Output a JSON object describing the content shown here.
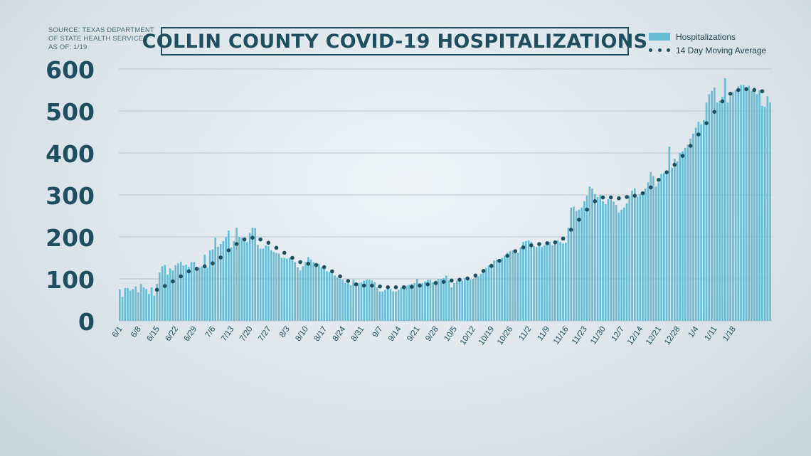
{
  "source_note": [
    "SOURCE: TEXAS DEPARTMENT",
    "OF STATE HEALTH SERVICES",
    "AS OF: 1/19"
  ],
  "colors": {
    "bar": "#68bdd4",
    "avg": "#1f4f5f",
    "axis_text": "#1f4f5f",
    "grid": "#b6c5cf"
  },
  "chart_data": {
    "type": "bar",
    "title": "COLLIN COUNTY COVID-19 HOSPITALIZATIONS",
    "ylim": [
      0,
      600
    ],
    "yticks": [
      0,
      100,
      200,
      300,
      400,
      500,
      600
    ],
    "grid": true,
    "legend_position": "top-right",
    "x_tick_labels": [
      "6/1",
      "6/8",
      "6/15",
      "6/22",
      "6/29",
      "7/6",
      "7/13",
      "7/20",
      "7/27",
      "8/3",
      "8/10",
      "8/17",
      "8/24",
      "8/31",
      "9/7",
      "9/14",
      "9/21",
      "9/28",
      "10/5",
      "10/12",
      "10/19",
      "10/26",
      "11/2",
      "11/9",
      "11/16",
      "11/23",
      "11/30",
      "12/7",
      "12/14",
      "12/21",
      "12/28",
      "1/4",
      "1/11",
      "1/18"
    ],
    "series": [
      {
        "name": "Hospitalizations",
        "type": "bar",
        "values": [
          75,
          57,
          78,
          78,
          72,
          76,
          82,
          68,
          88,
          80,
          76,
          64,
          80,
          60,
          88,
          115,
          130,
          133,
          110,
          125,
          120,
          133,
          137,
          141,
          132,
          134,
          128,
          140,
          140,
          123,
          127,
          130,
          158,
          127,
          168,
          170,
          198,
          176,
          183,
          190,
          200,
          215,
          175,
          190,
          222,
          200,
          198,
          193,
          188,
          210,
          222,
          221,
          181,
          172,
          172,
          180,
          178,
          168,
          164,
          162,
          160,
          150,
          150,
          148,
          150,
          144,
          140,
          128,
          120,
          130,
          140,
          152,
          146,
          140,
          134,
          136,
          128,
          127,
          118,
          116,
          114,
          108,
          104,
          100,
          98,
          90,
          90,
          85,
          98,
          91,
          90,
          92,
          96,
          98,
          98,
          96,
          92,
          80,
          70,
          70,
          74,
          80,
          76,
          70,
          70,
          74,
          80,
          80,
          84,
          86,
          88,
          90,
          100,
          90,
          90,
          94,
          98,
          98,
          92,
          96,
          100,
          100,
          102,
          108,
          96,
          80,
          90,
          96,
          98,
          96,
          102,
          100,
          98,
          100,
          104,
          106,
          112,
          120,
          126,
          132,
          136,
          144,
          146,
          142,
          150,
          155,
          162,
          166,
          168,
          166,
          162,
          175,
          188,
          190,
          192,
          188,
          178,
          176,
          180,
          176,
          180,
          184,
          188,
          180,
          186,
          192,
          188,
          184,
          186,
          222,
          270,
          272,
          262,
          265,
          270,
          285,
          298,
          320,
          315,
          302,
          295,
          300,
          285,
          278,
          290,
          288,
          284,
          276,
          258,
          265,
          270,
          280,
          298,
          310,
          316,
          296,
          302,
          306,
          315,
          330,
          355,
          345,
          320,
          330,
          350,
          352,
          358,
          415,
          365,
          386,
          380,
          400,
          404,
          412,
          420,
          434,
          446,
          460,
          474,
          468,
          478,
          520,
          540,
          548,
          556,
          520,
          524,
          534,
          578,
          520,
          535,
          545,
          550,
          558,
          562,
          562,
          558,
          560,
          548,
          556,
          540,
          550,
          512,
          510,
          535,
          520
        ]
      },
      {
        "name": "14 Day Moving Average",
        "type": "line-dotted",
        "values": [
          null,
          null,
          null,
          null,
          null,
          null,
          null,
          null,
          null,
          null,
          null,
          null,
          null,
          null,
          74,
          76,
          79,
          83,
          86,
          90,
          94,
          98,
          102,
          106,
          110,
          114,
          118,
          120,
          122,
          124,
          126,
          128,
          130,
          132,
          134,
          137,
          141,
          146,
          151,
          157,
          162,
          168,
          173,
          178,
          183,
          188,
          191,
          194,
          196,
          197,
          198,
          197,
          196,
          194,
          192,
          189,
          186,
          182,
          178,
          174,
          170,
          166,
          162,
          158,
          154,
          150,
          146,
          143,
          140,
          138,
          137,
          136,
          135,
          134,
          133,
          132,
          131,
          128,
          125,
          122,
          118,
          114,
          110,
          106,
          102,
          98,
          95,
          92,
          89,
          87,
          85,
          84,
          84,
          84,
          84,
          84,
          83,
          83,
          82,
          82,
          81,
          80,
          80,
          80,
          80,
          80,
          80,
          80,
          80,
          80,
          81,
          82,
          83,
          84,
          85,
          86,
          87,
          88,
          89,
          90,
          91,
          92,
          93,
          94,
          95,
          96,
          97,
          98,
          98,
          99,
          100,
          101,
          103,
          105,
          108,
          111,
          115,
          119,
          123,
          127,
          131,
          135,
          139,
          143,
          147,
          151,
          155,
          159,
          163,
          166,
          169,
          172,
          175,
          177,
          179,
          180,
          181,
          182,
          183,
          184,
          184,
          185,
          186,
          186,
          187,
          188,
          191,
          196,
          202,
          209,
          217,
          225,
          233,
          241,
          249,
          257,
          265,
          272,
          279,
          285,
          290,
          292,
          294,
          294,
          294,
          294,
          293,
          293,
          292,
          293,
          294,
          295,
          296,
          297,
          298,
          299,
          301,
          304,
          308,
          313,
          318,
          324,
          330,
          336,
          342,
          348,
          354,
          360,
          366,
          372,
          379,
          386,
          393,
          401,
          409,
          417,
          426,
          435,
          444,
          453,
          462,
          471,
          480,
          489,
          498,
          507,
          515,
          523,
          530,
          536,
          541,
          545,
          548,
          550,
          551,
          552,
          552,
          552,
          551,
          550,
          549,
          548,
          547,
          546,
          545
        ]
      }
    ]
  }
}
